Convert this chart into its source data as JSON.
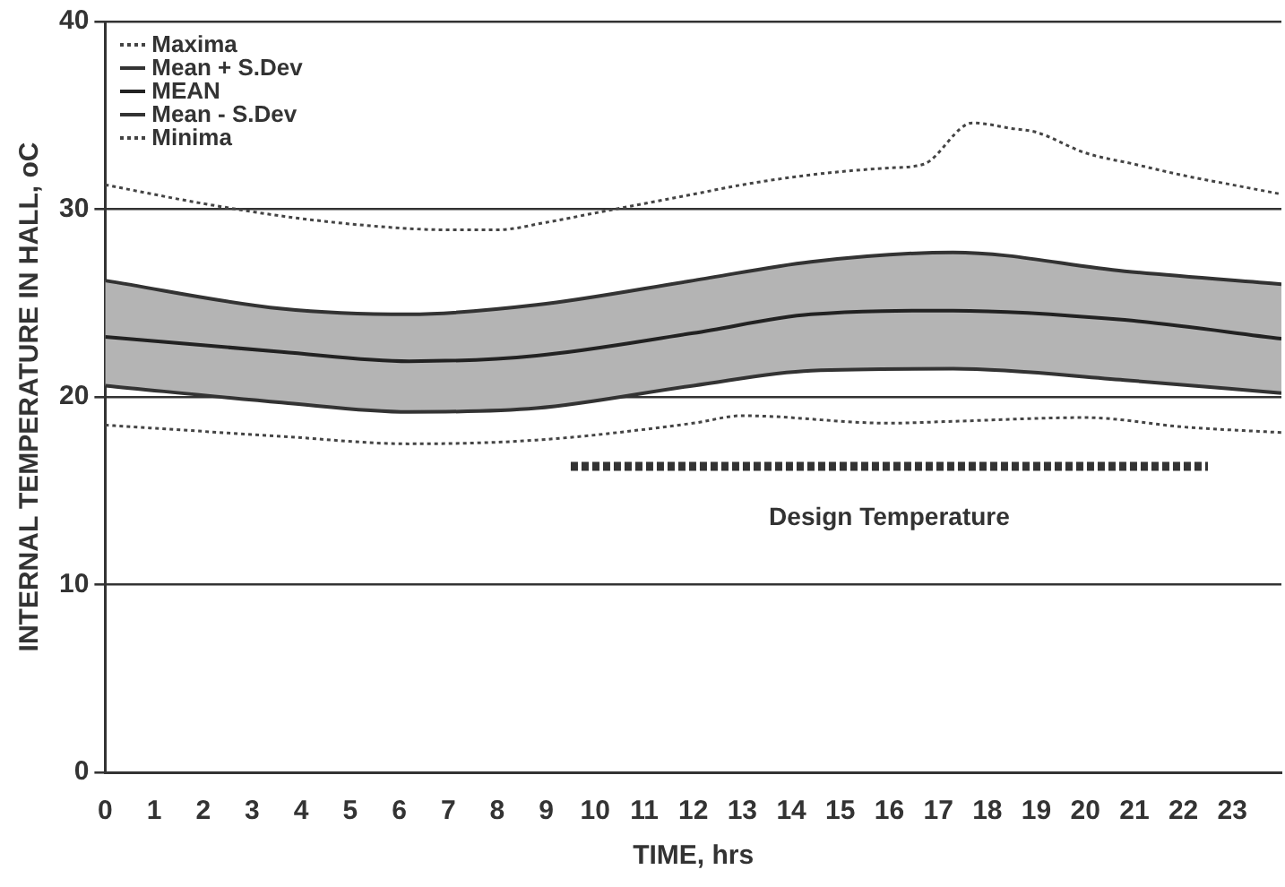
{
  "chart_data": {
    "type": "line",
    "xlabel": "TIME, hrs",
    "ylabel": "INTERNAL TEMPERATURE IN HALL, oC",
    "xlim": [
      0,
      24
    ],
    "xticks": [
      0,
      1,
      2,
      3,
      4,
      5,
      6,
      7,
      8,
      9,
      10,
      11,
      12,
      13,
      14,
      15,
      16,
      17,
      18,
      19,
      20,
      21,
      22,
      23
    ],
    "ylim": [
      0,
      40
    ],
    "yticks": [
      0,
      10,
      20,
      30,
      40
    ],
    "grid": "y",
    "legend": "top left",
    "marker": "none",
    "series": [
      {
        "name": "Maxima",
        "type": "line",
        "line_style": "dotted",
        "color": "#444444",
        "x": [
          0,
          2,
          4,
          6,
          7,
          8,
          9,
          10,
          11,
          12,
          13,
          14,
          15,
          16,
          16.7,
          17.7,
          18.5,
          19,
          20,
          21,
          22,
          23,
          24
        ],
        "values": [
          31.3,
          30.3,
          29.5,
          29.0,
          28.9,
          28.9,
          29.3,
          29.8,
          30.3,
          30.8,
          31.3,
          31.7,
          32.0,
          32.2,
          32.4,
          34.6,
          34.3,
          34.1,
          33.0,
          32.4,
          31.8,
          31.3,
          30.8
        ]
      },
      {
        "name": "Mean + S.Dev",
        "type": "area",
        "line_style": "solid",
        "color": "#333333",
        "x": [
          0,
          3.6,
          6.2,
          8.8,
          12,
          14.4,
          17.3,
          20.8,
          24
        ],
        "values": [
          26.2,
          24.7,
          24.4,
          24.9,
          26.2,
          27.2,
          27.7,
          26.7,
          26.0
        ]
      },
      {
        "name": "MEAN",
        "type": "line",
        "line_style": "solid",
        "color": "#222222",
        "x": [
          0,
          3.6,
          6.2,
          8.8,
          12,
          14.4,
          17.3,
          20.8,
          24
        ],
        "values": [
          23.2,
          22.4,
          21.9,
          22.2,
          23.4,
          24.4,
          24.6,
          24.1,
          23.1
        ]
      },
      {
        "name": "Mean - S.Dev",
        "type": "line",
        "line_style": "solid",
        "color": "#333333",
        "x": [
          0,
          3.6,
          6.2,
          8.8,
          12,
          14.4,
          17.3,
          20.8,
          24
        ],
        "values": [
          20.6,
          19.7,
          19.2,
          19.4,
          20.6,
          21.4,
          21.5,
          20.9,
          20.2
        ]
      },
      {
        "name": "Minima",
        "type": "line",
        "line_style": "dotted",
        "color": "#444444",
        "x": [
          0,
          3.6,
          6.2,
          8.8,
          12,
          13,
          16,
          17.3,
          20,
          22,
          24
        ],
        "values": [
          18.5,
          17.9,
          17.5,
          17.7,
          18.6,
          19.0,
          18.6,
          18.7,
          18.9,
          18.4,
          18.1
        ]
      },
      {
        "name": "Design Temperature",
        "type": "line",
        "line_style": "dashed",
        "color": "#333333",
        "x": [
          9.5,
          22.5
        ],
        "values": [
          16.3,
          16.3
        ]
      }
    ]
  }
}
